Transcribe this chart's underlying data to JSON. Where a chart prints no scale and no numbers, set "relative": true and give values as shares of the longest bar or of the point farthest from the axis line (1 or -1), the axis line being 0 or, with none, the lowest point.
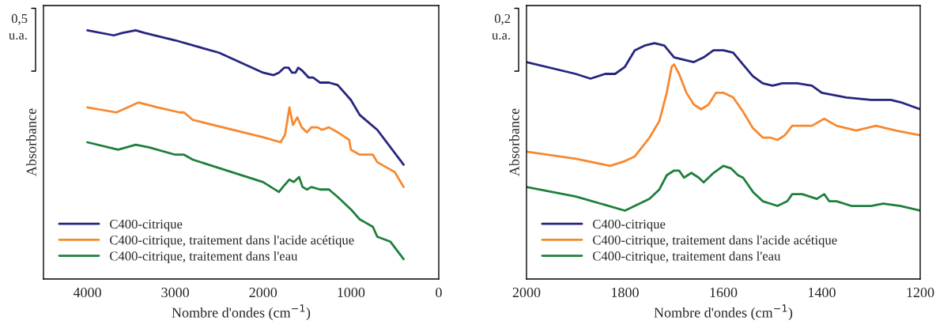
{
  "chart_data": [
    {
      "type": "line",
      "relative": true,
      "xlabel": "Nombre d'ondes (cm$^{−1}$)",
      "ylabel": "Absorbance",
      "xlim": [
        4500,
        0
      ],
      "xticks": [
        4000,
        3000,
        2000,
        1000,
        0
      ],
      "tick_labels": "x",
      "legend": "bottom left",
      "grid": false,
      "annotations": [
        "0,5\nu.a."
      ],
      "series": [
        {
          "name": "C400-citrique",
          "color": "#25257f",
          "x": [
            4000,
            3700,
            3600,
            3450,
            3350,
            3000,
            2500,
            2000,
            1880,
            1820,
            1760,
            1710,
            1670,
            1630,
            1600,
            1560,
            1480,
            1430,
            1350,
            1250,
            1150,
            1000,
            900,
            800,
            700,
            400
          ],
          "values": [
            1.0,
            0.98,
            0.99,
            1.0,
            0.99,
            0.96,
            0.91,
            0.83,
            0.82,
            0.83,
            0.85,
            0.85,
            0.83,
            0.83,
            0.85,
            0.84,
            0.81,
            0.81,
            0.79,
            0.79,
            0.78,
            0.72,
            0.66,
            0.63,
            0.6,
            0.46
          ]
        },
        {
          "name": "C400-citrique, traitement dans l'acide acétique",
          "color": "#f7882f",
          "x": [
            4000,
            3670,
            3420,
            3200,
            2950,
            2900,
            2800,
            2000,
            1800,
            1750,
            1700,
            1660,
            1610,
            1560,
            1500,
            1450,
            1380,
            1330,
            1250,
            1150,
            1020,
            1000,
            900,
            750,
            700,
            550,
            500,
            400
          ],
          "values": [
            0.69,
            0.67,
            0.71,
            0.69,
            0.67,
            0.67,
            0.64,
            0.57,
            0.55,
            0.58,
            0.69,
            0.62,
            0.65,
            0.61,
            0.59,
            0.61,
            0.61,
            0.6,
            0.61,
            0.59,
            0.56,
            0.52,
            0.5,
            0.5,
            0.47,
            0.44,
            0.43,
            0.37
          ]
        },
        {
          "name": "C400-citrique, traitement dans l'eau",
          "color": "#1e7f3c",
          "x": [
            4000,
            3650,
            3450,
            3300,
            3000,
            2900,
            2800,
            2000,
            1820,
            1750,
            1700,
            1650,
            1590,
            1550,
            1500,
            1450,
            1350,
            1250,
            1150,
            1000,
            900,
            850,
            750,
            700,
            550,
            400
          ],
          "values": [
            0.55,
            0.52,
            0.54,
            0.53,
            0.5,
            0.5,
            0.48,
            0.39,
            0.35,
            0.38,
            0.4,
            0.39,
            0.41,
            0.37,
            0.36,
            0.37,
            0.36,
            0.36,
            0.33,
            0.28,
            0.24,
            0.23,
            0.21,
            0.17,
            0.15,
            0.08
          ]
        }
      ]
    },
    {
      "type": "line",
      "relative": true,
      "xlabel": "Nombre d'ondes (cm$^{−1}$)",
      "ylabel": "Absorbance",
      "xlim": [
        2000,
        1200
      ],
      "xticks": [
        2000,
        1800,
        1600,
        1400,
        1200
      ],
      "tick_labels": "x",
      "legend": "bottom left",
      "grid": false,
      "annotations": [
        "0,2\nu.a."
      ],
      "series": [
        {
          "name": "C400-citrique",
          "color": "#25257f",
          "x": [
            2000,
            1900,
            1870,
            1840,
            1820,
            1800,
            1780,
            1760,
            1740,
            1720,
            1700,
            1680,
            1660,
            1640,
            1620,
            1600,
            1580,
            1560,
            1540,
            1520,
            1500,
            1480,
            1450,
            1420,
            1400,
            1350,
            1300,
            1260,
            1240,
            1200
          ],
          "values": [
            0.92,
            0.87,
            0.85,
            0.87,
            0.87,
            0.9,
            0.97,
            0.99,
            1.0,
            0.99,
            0.94,
            0.93,
            0.92,
            0.94,
            0.97,
            0.97,
            0.96,
            0.91,
            0.86,
            0.83,
            0.82,
            0.83,
            0.83,
            0.82,
            0.79,
            0.77,
            0.76,
            0.76,
            0.75,
            0.72
          ]
        },
        {
          "name": "C400-citrique, traitement dans l'acide acétique",
          "color": "#f7882f",
          "x": [
            2000,
            1900,
            1830,
            1800,
            1780,
            1750,
            1730,
            1715,
            1705,
            1700,
            1690,
            1675,
            1660,
            1645,
            1630,
            1615,
            1600,
            1580,
            1560,
            1540,
            1520,
            1505,
            1490,
            1475,
            1460,
            1440,
            1420,
            1395,
            1370,
            1330,
            1290,
            1250,
            1200
          ],
          "values": [
            0.54,
            0.51,
            0.48,
            0.5,
            0.52,
            0.6,
            0.67,
            0.79,
            0.9,
            0.91,
            0.87,
            0.79,
            0.74,
            0.72,
            0.74,
            0.79,
            0.79,
            0.77,
            0.71,
            0.64,
            0.6,
            0.6,
            0.59,
            0.61,
            0.65,
            0.65,
            0.65,
            0.68,
            0.65,
            0.63,
            0.65,
            0.63,
            0.61
          ]
        },
        {
          "name": "C400-citrique, traitement dans l'eau",
          "color": "#1e7f3c",
          "x": [
            2000,
            1900,
            1800,
            1780,
            1750,
            1730,
            1715,
            1700,
            1690,
            1680,
            1665,
            1650,
            1640,
            1620,
            1600,
            1585,
            1570,
            1560,
            1540,
            1520,
            1490,
            1470,
            1460,
            1440,
            1410,
            1395,
            1385,
            1370,
            1340,
            1300,
            1275,
            1240,
            1200
          ],
          "values": [
            0.39,
            0.35,
            0.29,
            0.31,
            0.34,
            0.38,
            0.44,
            0.46,
            0.46,
            0.43,
            0.45,
            0.43,
            0.41,
            0.45,
            0.48,
            0.47,
            0.44,
            0.43,
            0.37,
            0.33,
            0.31,
            0.33,
            0.36,
            0.36,
            0.34,
            0.36,
            0.33,
            0.33,
            0.31,
            0.31,
            0.32,
            0.31,
            0.29
          ]
        }
      ]
    }
  ]
}
